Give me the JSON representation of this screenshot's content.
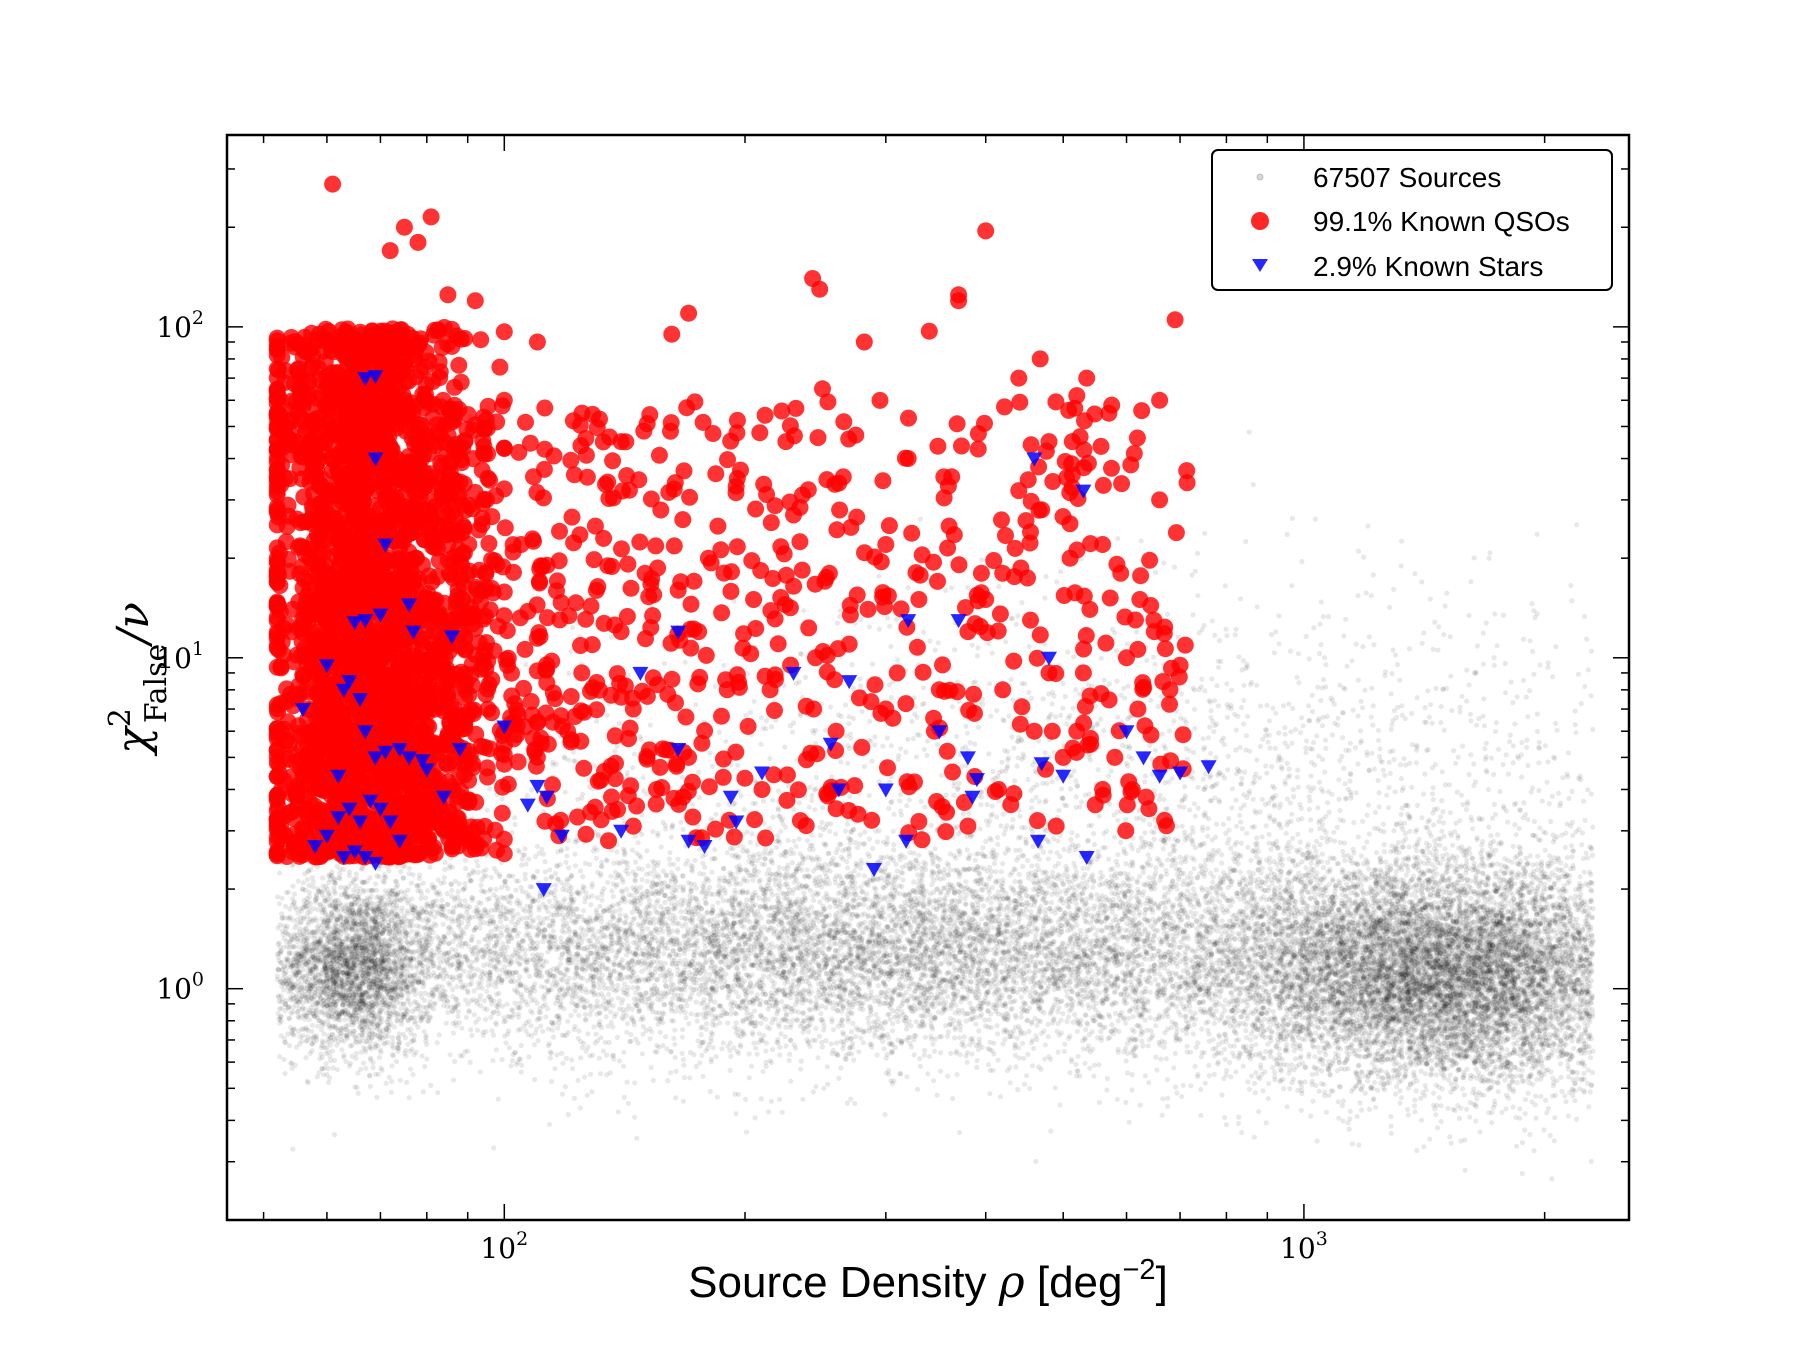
{
  "chart_data": {
    "type": "scatter",
    "title": "",
    "xlabel": "Source Density ρ [deg⁻²]",
    "xlabel_parts": {
      "main": "Source Density ",
      "rho": "ρ",
      "unit": " [deg",
      "exp": "−2",
      "close": "]"
    },
    "ylabel": "χ²_False/ν",
    "ylabel_parts": {
      "chi": "χ",
      "sup": "2",
      "sub": "False",
      "slash": "/ν"
    },
    "xscale": "log",
    "yscale": "log",
    "xlim": [
      45,
      2550
    ],
    "ylim": [
      0.2,
      380
    ],
    "xticks": [
      {
        "value": 100,
        "base": "10",
        "exp": "2"
      },
      {
        "value": 1000,
        "base": "10",
        "exp": "3"
      }
    ],
    "yticks": [
      {
        "value": 1,
        "base": "10",
        "exp": "0"
      },
      {
        "value": 10,
        "base": "10",
        "exp": "1"
      },
      {
        "value": 100,
        "base": "10",
        "exp": "2"
      }
    ],
    "legend": {
      "placement": "top-right",
      "entries": [
        {
          "label": "67507 Sources",
          "marker": "small-dot",
          "color": "#000000"
        },
        {
          "label": "99.1% Known QSOs",
          "marker": "circle",
          "color": "#ff0000"
        },
        {
          "label": "2.9% Known Stars",
          "marker": "triangle-down",
          "color": "#0000ff"
        }
      ]
    },
    "series": [
      {
        "name": "67507 Sources",
        "color": "#000000",
        "count": 67507,
        "clusters": [
          {
            "x_center": 65,
            "y_center": 1.15,
            "x_spread_dex": 0.05,
            "y_spread_dex": 0.13,
            "share": 0.1
          },
          {
            "x_center": 300,
            "y_center": 1.3,
            "x_spread_dex": 0.45,
            "y_spread_dex": 0.16,
            "share": 0.45
          },
          {
            "x_center": 1500,
            "y_center": 1.1,
            "x_spread_dex": 0.13,
            "y_spread_dex": 0.17,
            "share": 0.35
          },
          {
            "x_center": 700,
            "y_center": 4.0,
            "x_spread_dex": 0.45,
            "y_spread_dex": 0.3,
            "share": 0.1
          }
        ]
      },
      {
        "name": "99.1% Known QSOs",
        "color": "#ff0000",
        "points": [
          [
            61,
            270
          ],
          [
            75,
            200
          ],
          [
            81,
            215
          ],
          [
            72,
            170
          ],
          [
            78,
            180
          ],
          [
            85,
            125
          ],
          [
            92,
            120
          ],
          [
            400,
            195
          ],
          [
            243,
            140
          ],
          [
            248,
            130
          ],
          [
            370,
            120
          ],
          [
            370,
            125
          ],
          [
            690,
            105
          ],
          [
            340,
            97
          ],
          [
            282,
            90
          ],
          [
            250,
            65
          ],
          [
            440,
            70
          ],
          [
            520,
            62
          ],
          [
            468,
            80
          ],
          [
            535,
            70
          ],
          [
            575,
            58
          ],
          [
            660,
            60
          ],
          [
            505,
            35
          ],
          [
            225,
            45
          ],
          [
            320,
            40
          ],
          [
            480,
            45
          ],
          [
            660,
            30
          ],
          [
            170,
            110
          ],
          [
            162,
            95
          ],
          [
            140,
            45
          ],
          [
            122,
            52
          ],
          [
            110,
            90
          ],
          [
            100,
            60
          ],
          [
            95,
            30
          ],
          [
            105,
            22
          ],
          [
            130,
            25
          ],
          [
            150,
            18
          ],
          [
            180,
            20
          ],
          [
            205,
            15
          ],
          [
            255,
            18
          ],
          [
            300,
            22
          ],
          [
            330,
            15
          ],
          [
            380,
            12
          ],
          [
            420,
            18
          ],
          [
            455,
            24
          ],
          [
            480,
            9
          ],
          [
            540,
            14
          ],
          [
            600,
            10
          ],
          [
            650,
            12
          ],
          [
            680,
            8
          ],
          [
            700,
            9.5
          ],
          [
            560,
            22
          ],
          [
            190,
            8
          ],
          [
            215,
            8
          ],
          [
            260,
            6
          ],
          [
            300,
            7
          ],
          [
            350,
            8
          ],
          [
            420,
            8
          ],
          [
            460,
            6
          ],
          [
            520,
            6
          ],
          [
            580,
            5
          ],
          [
            610,
            4
          ],
          [
            640,
            3.5
          ],
          [
            110,
            5
          ],
          [
            120,
            6
          ],
          [
            145,
            7
          ],
          [
            170,
            5
          ],
          [
            210,
            4
          ],
          [
            260,
            3.5
          ],
          [
            330,
            3.2
          ],
          [
            380,
            3.1
          ],
          [
            430,
            3.6
          ],
          [
            490,
            3.1
          ],
          [
            560,
            4
          ],
          [
            117,
            2.9
          ],
          [
            135,
            2.8
          ],
          [
            145,
            3.1
          ],
          [
            155,
            4
          ],
          [
            175,
            12
          ],
          [
            195,
            33
          ],
          [
            230,
            27
          ],
          [
            270,
            11
          ],
          [
            310,
            9
          ],
          [
            360,
            25
          ],
          [
            400,
            15
          ],
          [
            440,
            32
          ],
          [
            470,
            28
          ],
          [
            510,
            20
          ],
          [
            590,
            18
          ],
          [
            620,
            7
          ],
          [
            530,
            9
          ],
          [
            500,
            5
          ],
          [
            140,
            12
          ],
          [
            125,
            9
          ],
          [
            165,
            16
          ],
          [
            185,
            25
          ],
          [
            245,
            10
          ],
          [
            285,
            14
          ],
          [
            345,
            6
          ],
          [
            395,
            18
          ],
          [
            415,
            4
          ],
          [
            455,
            13
          ]
        ],
        "dense_cluster": {
          "x_range": [
            52,
            100
          ],
          "y_range": [
            2.5,
            100
          ],
          "approx_count": 2500
        }
      },
      {
        "name": "2.9% Known Stars",
        "color": "#0000ff",
        "points": [
          [
            67,
            70
          ],
          [
            69,
            71
          ],
          [
            69,
            40
          ],
          [
            71,
            22
          ],
          [
            67,
            13
          ],
          [
            70,
            13.5
          ],
          [
            76,
            14.5
          ],
          [
            77,
            12
          ],
          [
            65,
            12.8
          ],
          [
            60,
            9.5
          ],
          [
            63,
            8
          ],
          [
            64,
            8.5
          ],
          [
            56,
            7
          ],
          [
            67,
            6
          ],
          [
            66,
            7.5
          ],
          [
            69,
            5
          ],
          [
            71,
            5.2
          ],
          [
            74,
            5.3
          ],
          [
            76,
            5
          ],
          [
            80,
            4.6
          ],
          [
            84,
            3.8
          ],
          [
            62,
            3.3
          ],
          [
            64,
            3.5
          ],
          [
            66,
            3.2
          ],
          [
            68,
            3.7
          ],
          [
            70,
            3.5
          ],
          [
            72,
            3.2
          ],
          [
            74,
            2.8
          ],
          [
            60,
            2.9
          ],
          [
            58,
            2.7
          ],
          [
            63,
            2.5
          ],
          [
            65,
            2.6
          ],
          [
            67,
            2.5
          ],
          [
            69,
            2.4
          ],
          [
            62,
            4.4
          ],
          [
            86,
            11.6
          ],
          [
            88,
            5.3
          ],
          [
            79,
            4.9
          ],
          [
            100,
            6.2
          ],
          [
            110,
            4.1
          ],
          [
            107,
            3.6
          ],
          [
            113,
            3.8
          ],
          [
            118,
            2.9
          ],
          [
            112,
            2
          ],
          [
            140,
            3
          ],
          [
            148,
            9
          ],
          [
            165,
            12
          ],
          [
            165,
            5.3
          ],
          [
            170,
            2.8
          ],
          [
            178,
            2.7
          ],
          [
            192,
            3.8
          ],
          [
            195,
            3.2
          ],
          [
            230,
            9
          ],
          [
            210,
            4.5
          ],
          [
            270,
            8.5
          ],
          [
            256,
            5.5
          ],
          [
            262,
            4
          ],
          [
            300,
            4
          ],
          [
            290,
            2.3
          ],
          [
            320,
            13
          ],
          [
            318,
            2.8
          ],
          [
            370,
            13
          ],
          [
            350,
            6
          ],
          [
            380,
            5
          ],
          [
            390,
            4.3
          ],
          [
            385,
            3.8
          ],
          [
            460,
            40
          ],
          [
            530,
            32
          ],
          [
            480,
            10
          ],
          [
            470,
            4.8
          ],
          [
            500,
            4.4
          ],
          [
            465,
            2.8
          ],
          [
            535,
            2.5
          ],
          [
            600,
            6
          ],
          [
            630,
            5
          ],
          [
            660,
            4.4
          ],
          [
            700,
            4.5
          ],
          [
            760,
            4.7
          ]
        ]
      }
    ]
  }
}
